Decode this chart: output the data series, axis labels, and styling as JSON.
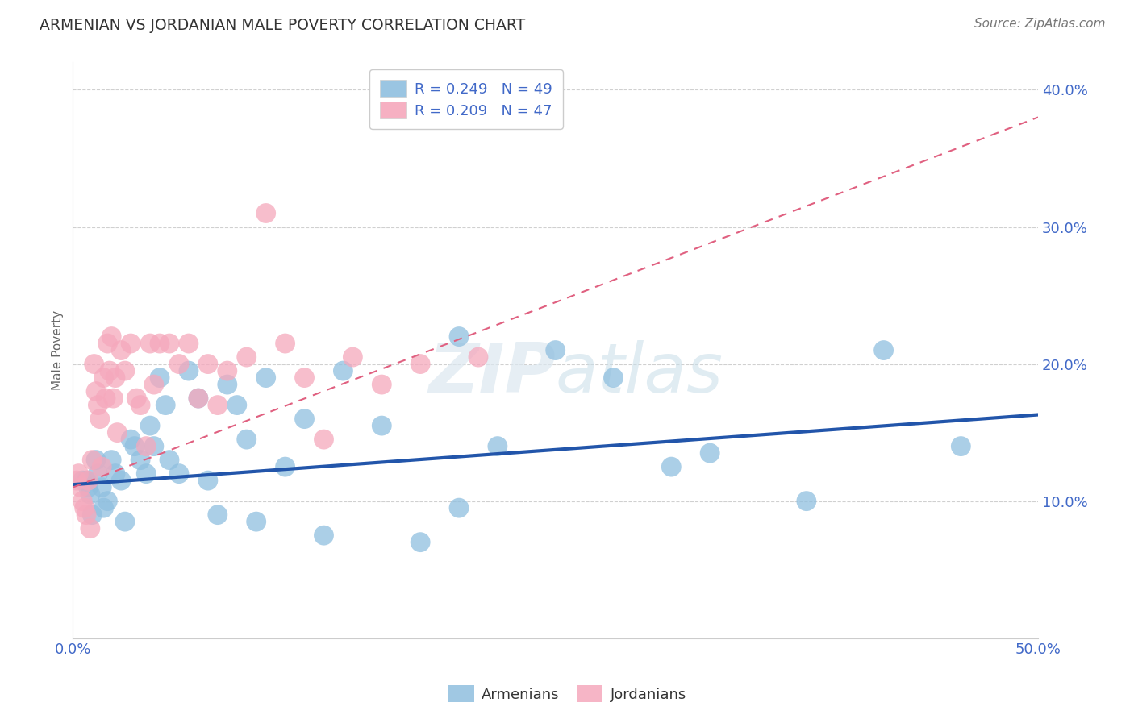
{
  "title": "ARMENIAN VS JORDANIAN MALE POVERTY CORRELATION CHART",
  "source": "Source: ZipAtlas.com",
  "ylabel": "Male Poverty",
  "xlim": [
    0.0,
    0.5
  ],
  "ylim": [
    0.0,
    0.42
  ],
  "xticks": [
    0.0,
    0.1,
    0.2,
    0.3,
    0.4,
    0.5
  ],
  "xticklabels": [
    "0.0%",
    "",
    "",
    "",
    "",
    "50.0%"
  ],
  "yticks": [
    0.0,
    0.1,
    0.2,
    0.3,
    0.4
  ],
  "yticklabels": [
    "",
    "10.0%",
    "20.0%",
    "30.0%",
    "40.0%"
  ],
  "armenian_R": 0.249,
  "armenian_N": 49,
  "jordanian_R": 0.209,
  "jordanian_N": 47,
  "armenian_color": "#8fbfdf",
  "jordanian_color": "#f5a8bc",
  "armenian_line_color": "#2255aa",
  "jordanian_line_color": "#e06080",
  "armenian_x": [
    0.005,
    0.007,
    0.008,
    0.009,
    0.01,
    0.012,
    0.013,
    0.015,
    0.016,
    0.018,
    0.02,
    0.022,
    0.025,
    0.027,
    0.03,
    0.032,
    0.035,
    0.038,
    0.04,
    0.042,
    0.045,
    0.048,
    0.05,
    0.055,
    0.06,
    0.065,
    0.07,
    0.075,
    0.08,
    0.085,
    0.09,
    0.095,
    0.1,
    0.11,
    0.12,
    0.13,
    0.14,
    0.16,
    0.18,
    0.2,
    0.2,
    0.22,
    0.25,
    0.28,
    0.31,
    0.33,
    0.38,
    0.42,
    0.46
  ],
  "armenian_y": [
    0.115,
    0.115,
    0.11,
    0.105,
    0.09,
    0.13,
    0.12,
    0.11,
    0.095,
    0.1,
    0.13,
    0.12,
    0.115,
    0.085,
    0.145,
    0.14,
    0.13,
    0.12,
    0.155,
    0.14,
    0.19,
    0.17,
    0.13,
    0.12,
    0.195,
    0.175,
    0.115,
    0.09,
    0.185,
    0.17,
    0.145,
    0.085,
    0.19,
    0.125,
    0.16,
    0.075,
    0.195,
    0.155,
    0.07,
    0.22,
    0.095,
    0.14,
    0.21,
    0.19,
    0.125,
    0.135,
    0.1,
    0.21,
    0.14
  ],
  "jordanian_x": [
    0.002,
    0.003,
    0.004,
    0.005,
    0.006,
    0.007,
    0.008,
    0.009,
    0.01,
    0.011,
    0.012,
    0.013,
    0.014,
    0.015,
    0.016,
    0.017,
    0.018,
    0.019,
    0.02,
    0.021,
    0.022,
    0.023,
    0.025,
    0.027,
    0.03,
    0.033,
    0.035,
    0.038,
    0.04,
    0.042,
    0.045,
    0.05,
    0.055,
    0.06,
    0.065,
    0.07,
    0.075,
    0.08,
    0.09,
    0.1,
    0.11,
    0.12,
    0.13,
    0.145,
    0.16,
    0.18,
    0.21
  ],
  "jordanian_y": [
    0.115,
    0.12,
    0.11,
    0.1,
    0.095,
    0.09,
    0.115,
    0.08,
    0.13,
    0.2,
    0.18,
    0.17,
    0.16,
    0.125,
    0.19,
    0.175,
    0.215,
    0.195,
    0.22,
    0.175,
    0.19,
    0.15,
    0.21,
    0.195,
    0.215,
    0.175,
    0.17,
    0.14,
    0.215,
    0.185,
    0.215,
    0.215,
    0.2,
    0.215,
    0.175,
    0.2,
    0.17,
    0.195,
    0.205,
    0.31,
    0.215,
    0.19,
    0.145,
    0.205,
    0.185,
    0.2,
    0.205
  ]
}
